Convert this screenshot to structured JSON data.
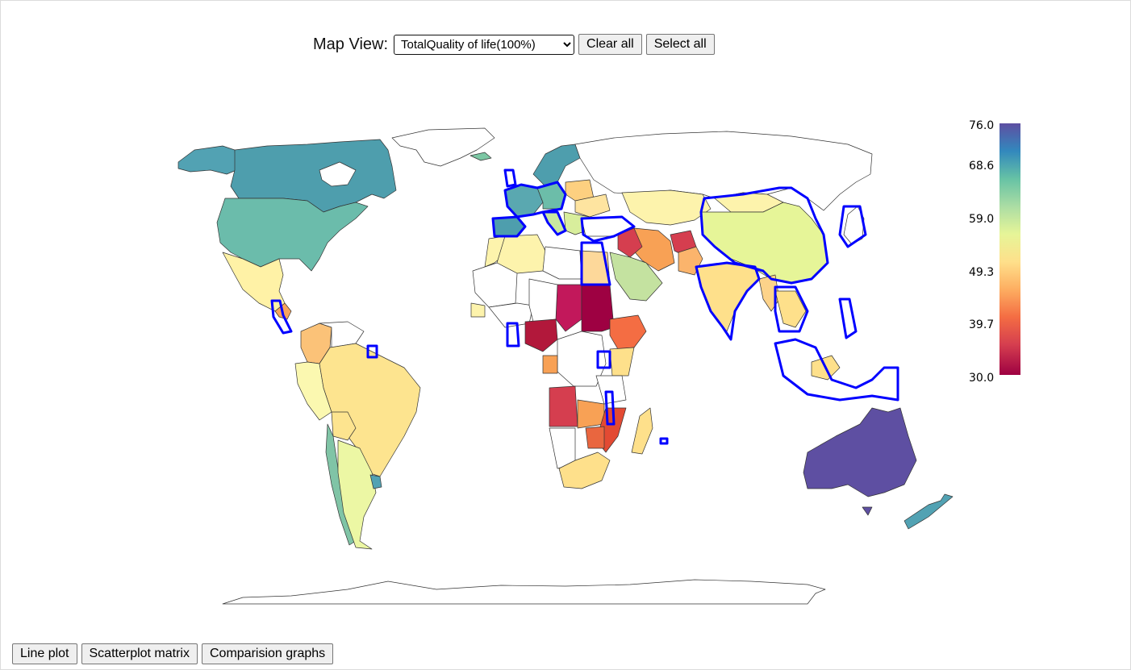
{
  "controls": {
    "label": "Map View:",
    "selected_view": "TotalQuality of life(100%)",
    "clear_all_label": "Clear all",
    "select_all_label": "Select all"
  },
  "bottom_buttons": {
    "line_plot": "Line plot",
    "scatterplot_matrix": "Scatterplot matrix",
    "comparison_graphs": "Comparision graphs"
  },
  "legend": {
    "ticks": [
      "76.0",
      "68.6",
      "59.0",
      "49.3",
      "39.7",
      "30.0"
    ],
    "min": 30.0,
    "max": 76.0,
    "colorscale": "Spectral",
    "colors": [
      "#5e4fa2",
      "#3288bd",
      "#66c2a5",
      "#abdda4",
      "#e6f598",
      "#fee08b",
      "#fdae61",
      "#f46d43",
      "#d53e4f",
      "#9e0142"
    ]
  },
  "map": {
    "selected_outline_color": "#0000ff",
    "border_color": "#333333",
    "no_data_color": "#ffffff"
  }
}
